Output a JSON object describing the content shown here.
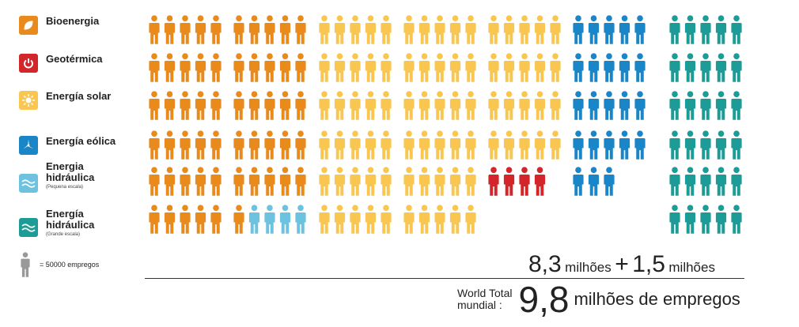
{
  "legend": [
    {
      "label": "Bioenergia",
      "sub": "",
      "color": "#e98a1d",
      "icon": "leaf-icon"
    },
    {
      "label": "Geotérmica",
      "sub": "",
      "color": "#d2262a",
      "icon": "power-icon"
    },
    {
      "label": "Energía solar",
      "sub": "",
      "color": "#f9c751",
      "icon": "sun-icon"
    },
    {
      "label": "Energía eólica",
      "sub": "",
      "color": "#1b86c7",
      "icon": "wind-turbine-icon"
    },
    {
      "label": "Energia hidráulica",
      "sub": "(Pequena escala)",
      "color": "#6cc2df",
      "icon": "wave-icon"
    },
    {
      "label": "Energía hidráulica",
      "sub": "(Grande escala)",
      "color": "#1d9b96",
      "icon": "wave-icon"
    }
  ],
  "unit": {
    "label": "= 50000 empregos",
    "color": "#999999",
    "icon": "person-icon"
  },
  "totals": {
    "part1_value": "8,3",
    "part1_unit": "milhões",
    "plus": "+",
    "part2_value": "1,5",
    "part2_unit": "milhões",
    "world_total_label": "World Total",
    "mundial_label": "mundial :",
    "total_value": "9,8",
    "total_unit": "milhões de empregos"
  },
  "chart_data": {
    "type": "pictogram",
    "unit_value": 50000,
    "unit_label": "= 50000 empregos",
    "columns": [
      {
        "segments": [
          {
            "series": "Bioenergia",
            "count": 30
          }
        ]
      },
      {
        "segments": [
          {
            "series": "Bioenergia",
            "count": 26
          },
          {
            "series": "Energia hidráulica (Pequena escala)",
            "count": 4
          }
        ]
      },
      {
        "segments": [
          {
            "series": "Energía solar",
            "count": 30
          }
        ]
      },
      {
        "segments": [
          {
            "series": "Energía solar",
            "count": 30
          }
        ]
      },
      {
        "segments": [
          {
            "series": "Energía solar",
            "count": 20
          },
          {
            "series": "Geotérmica",
            "count": 4
          }
        ]
      },
      {
        "segments": [
          {
            "series": "Energía eólica",
            "count": 23
          }
        ]
      },
      {
        "segments": [
          {
            "series": "Energía hidráulica (Grande escala)",
            "count": 30
          }
        ]
      }
    ],
    "colors": {
      "Bioenergia": "#e98a1d",
      "Geotérmica": "#d2262a",
      "Energía solar": "#f9c751",
      "Energía eólica": "#1b86c7",
      "Energia hidráulica (Pequena escala)": "#6cc2df",
      "Energía hidráulica (Grande escala)": "#1d9b96"
    }
  }
}
